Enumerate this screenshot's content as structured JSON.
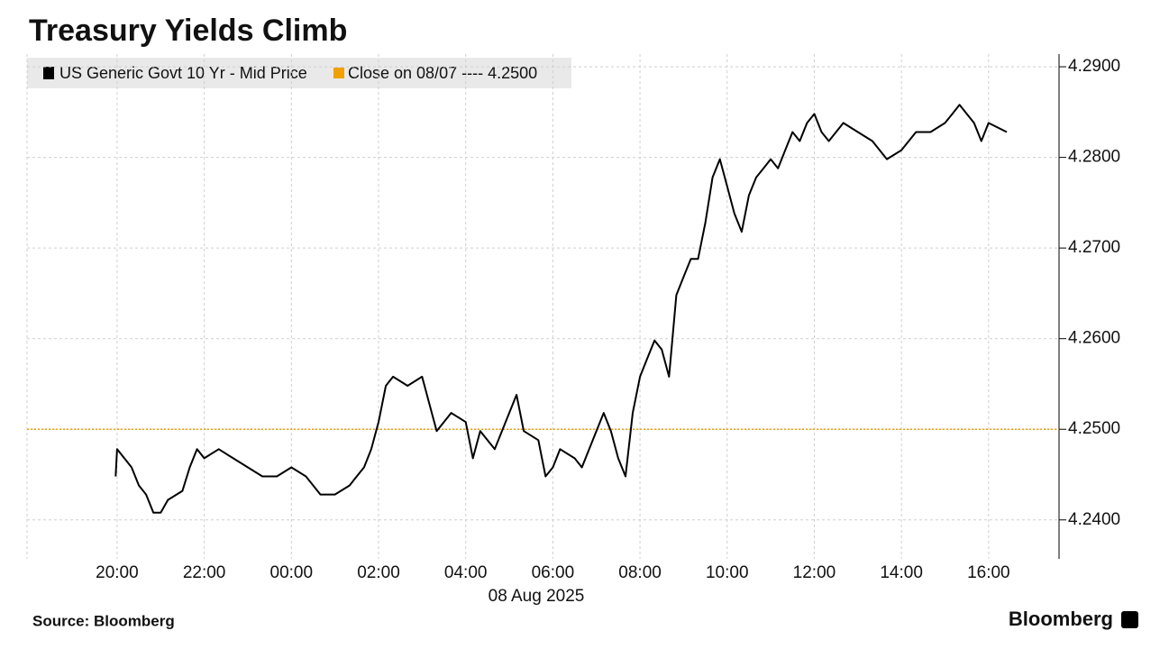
{
  "chart_data": {
    "type": "line",
    "title": "Treasury Yields Climb",
    "x_sublabel": "08 Aug 2025",
    "source": "Source: Bloomberg",
    "brand": "Bloomberg",
    "grid": true,
    "legend": "top-left",
    "xlim": [
      "17:56",
      "17:37"
    ],
    "xticks": [
      "20:00",
      "22:00",
      "00:00",
      "02:00",
      "04:00",
      "06:00",
      "08:00",
      "10:00",
      "12:00",
      "14:00",
      "16:00"
    ],
    "ylim": [
      4.2357,
      4.2914
    ],
    "yticks": [
      {
        "value": 4.24,
        "label": "4.2400"
      },
      {
        "value": 4.25,
        "label": "4.2500"
      },
      {
        "value": 4.26,
        "label": "4.2600"
      },
      {
        "value": 4.27,
        "label": "4.2700"
      },
      {
        "value": 4.28,
        "label": "4.2800"
      },
      {
        "value": 4.29,
        "label": "4.2900"
      }
    ],
    "reference_line": {
      "name": "Close on 08/07 ---- 4.2500",
      "value": 4.25,
      "color": "#f0a000"
    },
    "x": [
      "19:58",
      "20:00",
      "20:10",
      "20:20",
      "20:30",
      "20:40",
      "20:50",
      "21:00",
      "21:10",
      "21:30",
      "21:40",
      "21:50",
      "22:00",
      "22:20",
      "22:40",
      "23:00",
      "23:20",
      "23:40",
      "00:00",
      "00:20",
      "00:30",
      "00:40",
      "01:00",
      "01:20",
      "01:30",
      "01:40",
      "01:50",
      "02:00",
      "02:10",
      "02:20",
      "02:40",
      "03:00",
      "03:10",
      "03:20",
      "03:40",
      "04:00",
      "04:10",
      "04:20",
      "04:40",
      "05:00",
      "05:10",
      "05:20",
      "05:40",
      "05:50",
      "06:00",
      "06:10",
      "06:30",
      "06:40",
      "07:00",
      "07:10",
      "07:20",
      "07:30",
      "07:40",
      "07:50",
      "08:00",
      "08:10",
      "08:20",
      "08:30",
      "08:40",
      "08:50",
      "09:00",
      "09:10",
      "09:20",
      "09:30",
      "09:40",
      "09:50",
      "10:00",
      "10:10",
      "10:20",
      "10:30",
      "10:40",
      "10:50",
      "11:00",
      "11:10",
      "11:20",
      "11:30",
      "11:40",
      "11:50",
      "12:00",
      "12:10",
      "12:20",
      "12:40",
      "13:00",
      "13:20",
      "13:40",
      "14:00",
      "14:20",
      "14:40",
      "15:00",
      "15:10",
      "15:20",
      "15:40",
      "15:50",
      "16:00",
      "16:25"
    ],
    "series": [
      {
        "name": "US Generic Govt 10 Yr - Mid Price",
        "color": "#000000",
        "values": [
          4.2448,
          4.2478,
          4.2468,
          4.2458,
          4.2438,
          4.2428,
          4.2408,
          4.2408,
          4.2422,
          4.2432,
          4.2458,
          4.2478,
          4.2468,
          4.2478,
          4.2468,
          4.2458,
          4.2448,
          4.2448,
          4.2458,
          4.2448,
          4.2438,
          4.2428,
          4.2428,
          4.2438,
          4.2448,
          4.2458,
          4.2478,
          4.2508,
          4.2548,
          4.2558,
          4.2548,
          4.2558,
          4.2528,
          4.2498,
          4.2518,
          4.2508,
          4.2468,
          4.2498,
          4.2478,
          4.2518,
          4.2538,
          4.2498,
          4.2488,
          4.2448,
          4.2458,
          4.2478,
          4.2468,
          4.2458,
          4.2498,
          4.2518,
          4.2498,
          4.2468,
          4.2448,
          4.2518,
          4.2558,
          4.2578,
          4.2598,
          4.2588,
          4.2558,
          4.2648,
          4.2668,
          4.2688,
          4.2688,
          4.2728,
          4.2778,
          4.2798,
          4.2768,
          4.2738,
          4.2718,
          4.2758,
          4.2778,
          4.2788,
          4.2798,
          4.2788,
          4.2808,
          4.2828,
          4.2818,
          4.2838,
          4.2848,
          4.2828,
          4.2818,
          4.2838,
          4.2828,
          4.2818,
          4.2798,
          4.2808,
          4.2828,
          4.2828,
          4.2838,
          4.2848,
          4.2858,
          4.2838,
          4.2818,
          4.2838,
          4.2828
        ]
      }
    ]
  }
}
